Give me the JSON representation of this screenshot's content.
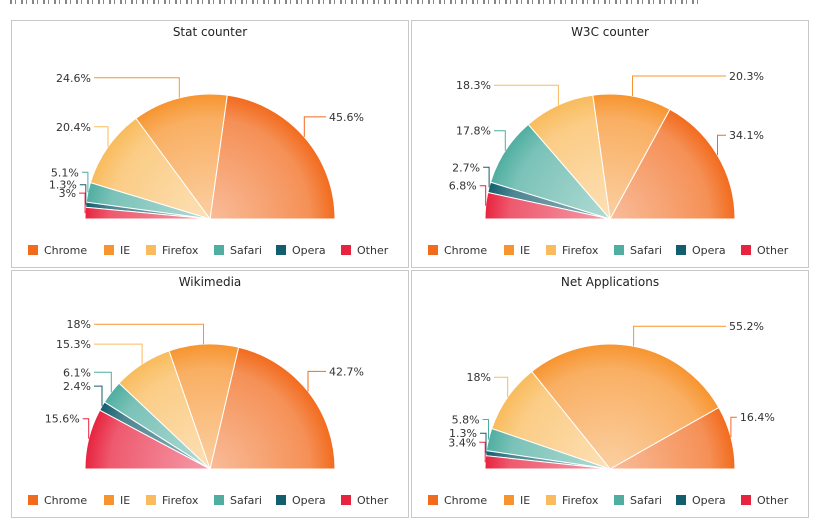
{
  "legend_items": [
    {
      "label": "Chrome",
      "color": "#f26b1d"
    },
    {
      "label": "IE",
      "color": "#f7942f"
    },
    {
      "label": "Firefox",
      "color": "#f9bb5c"
    },
    {
      "label": "Safari",
      "color": "#4faea0"
    },
    {
      "label": "Opera",
      "color": "#125e6e"
    },
    {
      "label": "Other",
      "color": "#e8233f"
    }
  ],
  "chart_data": [
    {
      "type": "pie",
      "shape": "semicircle",
      "title": "Stat counter",
      "categories": [
        "Chrome",
        "IE",
        "Firefox",
        "Safari",
        "Opera",
        "Other"
      ],
      "values": [
        45.6,
        24.6,
        20.4,
        5.1,
        1.3,
        3
      ],
      "labels": [
        "45.6%",
        "24.6%",
        "20.4%",
        "5.1%",
        "1.3%",
        "3%"
      ]
    },
    {
      "type": "pie",
      "shape": "semicircle",
      "title": "W3C counter",
      "categories": [
        "Chrome",
        "IE",
        "Firefox",
        "Safari",
        "Opera",
        "Other"
      ],
      "values": [
        34.1,
        20.3,
        18.3,
        17.8,
        2.7,
        6.8
      ],
      "labels": [
        "34.1%",
        "20.3%",
        "18.3%",
        "17.8%",
        "2.7%",
        "6.8%"
      ]
    },
    {
      "type": "pie",
      "shape": "semicircle",
      "title": "Wikimedia",
      "categories": [
        "Chrome",
        "IE",
        "Firefox",
        "Safari",
        "Opera",
        "Other"
      ],
      "values": [
        42.7,
        18,
        15.3,
        6.1,
        2.4,
        15.6
      ],
      "labels": [
        "42.7%",
        "18%",
        "15.3%",
        "6.1%",
        "2.4%",
        "15.6%"
      ]
    },
    {
      "type": "pie",
      "shape": "semicircle",
      "title": "Net Applications",
      "categories": [
        "Chrome",
        "IE",
        "Firefox",
        "Safari",
        "Opera",
        "Other"
      ],
      "values": [
        16.4,
        55.2,
        18,
        5.8,
        1.3,
        3.4
      ],
      "labels": [
        "16.4%",
        "55.2%",
        "18%",
        "5.8%",
        "1.3%",
        "3.4%"
      ]
    }
  ]
}
